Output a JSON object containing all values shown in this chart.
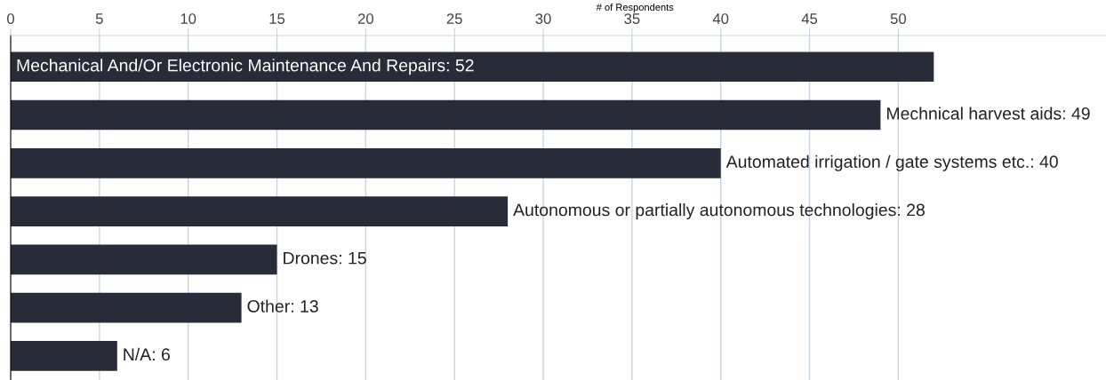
{
  "chart_data": {
    "type": "bar",
    "orientation": "horizontal",
    "xlabel": "# of Respondents",
    "categories": [
      "Mechanical And/Or Electronic Maintenance And Repairs: 52",
      "Mechnical harvest aids: 49",
      "Automated irrigation / gate systems etc.: 40",
      "Autonomous or partially autonomous technologies: 28",
      "Drones: 15",
      "Other: 13",
      "N/A: 6"
    ],
    "values": [
      52,
      49,
      40,
      28,
      15,
      13,
      6
    ],
    "color": "#282c38",
    "xlim": [
      0,
      61.7
    ],
    "xticks": [
      0,
      5,
      10,
      15,
      20,
      25,
      30,
      35,
      40,
      45,
      50
    ],
    "grid": "x",
    "tick_labels": "x"
  }
}
